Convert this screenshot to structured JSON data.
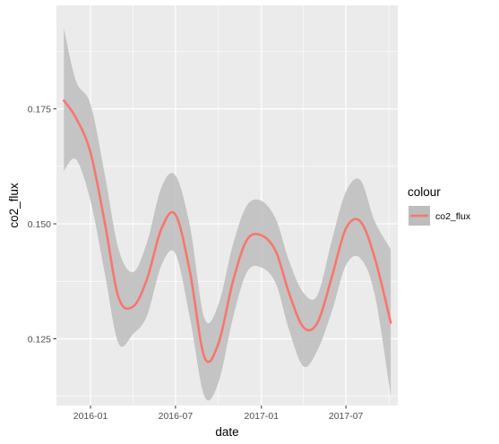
{
  "chart_data": {
    "type": "line",
    "xlabel": "date",
    "ylabel": "co2_flux",
    "xlim": [
      "2015-10-20",
      "2017-10-20"
    ],
    "ylim": [
      0.1105,
      0.1975
    ],
    "x_ticks": [
      "2016-01",
      "2016-07",
      "2017-01",
      "2017-07"
    ],
    "x_tick_dates": [
      "2016-01-01",
      "2016-07-01",
      "2017-01-01",
      "2017-07-01"
    ],
    "y_ticks": [
      "0.125",
      "0.150",
      "0.175"
    ],
    "y_tick_values": [
      0.125,
      0.15,
      0.175
    ],
    "grid": true,
    "legend": {
      "title": "colour",
      "placement": "right",
      "entries": [
        {
          "label": "co2_flux",
          "color": "#F8766D",
          "band_color": "#BDBDBD"
        }
      ]
    },
    "series": [
      {
        "name": "co2_flux",
        "color": "#F8766D",
        "x": [
          "2015-11-05",
          "2015-12-01",
          "2016-01-01",
          "2016-02-01",
          "2016-03-01",
          "2016-04-01",
          "2016-05-01",
          "2016-06-01",
          "2016-07-01",
          "2016-08-01",
          "2016-09-01",
          "2016-10-01",
          "2016-11-01",
          "2016-12-01",
          "2017-01-01",
          "2017-02-01",
          "2017-03-01",
          "2017-04-01",
          "2017-05-01",
          "2017-06-01",
          "2017-07-01",
          "2017-08-01",
          "2017-09-01",
          "2017-10-05"
        ],
        "y": [
          0.1768,
          0.173,
          0.1655,
          0.15,
          0.134,
          0.132,
          0.138,
          0.149,
          0.152,
          0.1395,
          0.121,
          0.124,
          0.1375,
          0.1465,
          0.1475,
          0.144,
          0.135,
          0.1275,
          0.1285,
          0.1385,
          0.149,
          0.1505,
          0.1425,
          0.1285
        ],
        "lower": [
          0.1615,
          0.164,
          0.155,
          0.139,
          0.124,
          0.126,
          0.13,
          0.141,
          0.1435,
          0.1295,
          0.1125,
          0.1155,
          0.1295,
          0.1395,
          0.1405,
          0.137,
          0.127,
          0.119,
          0.1225,
          0.131,
          0.141,
          0.1425,
          0.1345,
          0.1125
        ],
        "upper": [
          0.1925,
          0.181,
          0.176,
          0.1605,
          0.1445,
          0.1395,
          0.146,
          0.158,
          0.1605,
          0.1495,
          0.1295,
          0.1325,
          0.1455,
          0.154,
          0.155,
          0.151,
          0.142,
          0.135,
          0.1345,
          0.1465,
          0.157,
          0.1595,
          0.1505,
          0.1445
        ]
      }
    ]
  }
}
